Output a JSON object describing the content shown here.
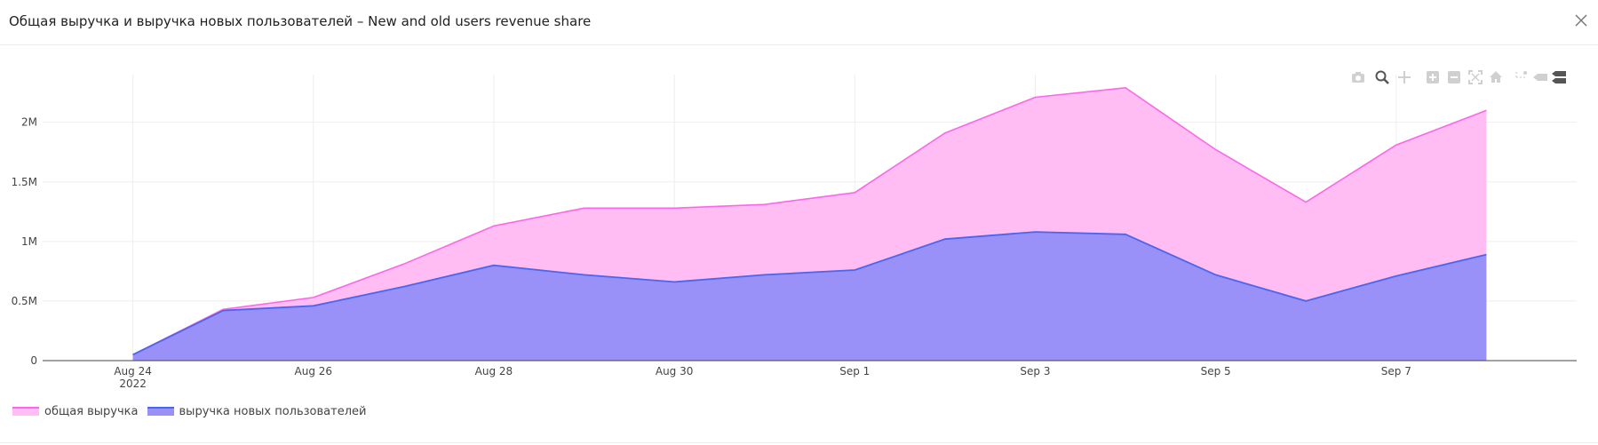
{
  "header": {
    "title": "Общая выручка и выручка новых пользователей – New and old users revenue share"
  },
  "icons": {
    "close": "close-icon",
    "modebar": [
      "camera-icon",
      "zoom-icon",
      "pan-icon",
      "zoom-in-icon",
      "zoom-out-icon",
      "autoscale-icon",
      "reset-axes-icon",
      "spike-lines-icon",
      "hover-closest-icon",
      "hover-compare-icon"
    ]
  },
  "colors": {
    "total_fill": "#ffbdf3",
    "total_line": "#ff66e6",
    "new_fill": "#9990f8",
    "new_line": "#4a66ef",
    "grid": "#eeeeee",
    "axis": "#444444"
  },
  "legend": {
    "items": [
      "общая выручка",
      "выручка новых пользователей"
    ]
  },
  "chart_data": {
    "type": "area",
    "title": "Общая выручка и выручка новых пользователей – New and old users revenue share",
    "x": [
      "2022-08-24",
      "2022-08-25",
      "2022-08-26",
      "2022-08-27",
      "2022-08-28",
      "2022-08-29",
      "2022-08-30",
      "2022-08-31",
      "2022-09-01",
      "2022-09-02",
      "2022-09-03",
      "2022-09-04",
      "2022-09-05",
      "2022-09-06",
      "2022-09-07",
      "2022-09-08"
    ],
    "series": [
      {
        "name": "общая выручка",
        "values": [
          50000,
          430000,
          530000,
          810000,
          1130000,
          1280000,
          1280000,
          1310000,
          1410000,
          1910000,
          2210000,
          2290000,
          1770000,
          1330000,
          1810000,
          2100000
        ]
      },
      {
        "name": "выручка новых пользователей",
        "values": [
          50000,
          420000,
          460000,
          620000,
          800000,
          720000,
          660000,
          720000,
          760000,
          1020000,
          1080000,
          1060000,
          720000,
          500000,
          710000,
          890000
        ]
      }
    ],
    "xlim": [
      "2022-08-23",
      "2022-09-09"
    ],
    "ylim": [
      0,
      2400000
    ],
    "x_ticks": [
      "Aug 24",
      "Aug 26",
      "Aug 28",
      "Aug 30",
      "Sep 1",
      "Sep 3",
      "Sep 5",
      "Sep 7"
    ],
    "x_tick_year": "2022",
    "y_ticks": [
      {
        "value": 0,
        "label": "0"
      },
      {
        "value": 500000,
        "label": "0.5M"
      },
      {
        "value": 1000000,
        "label": "1M"
      },
      {
        "value": 1500000,
        "label": "1.5M"
      },
      {
        "value": 2000000,
        "label": "2M"
      }
    ],
    "grid": true,
    "legend_position": "bottom-left"
  }
}
